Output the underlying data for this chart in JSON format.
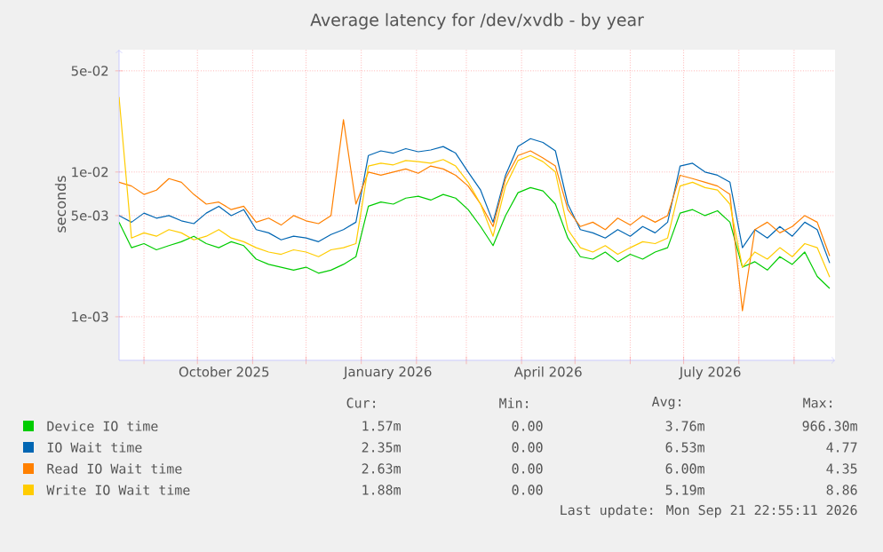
{
  "chart_data": {
    "type": "line",
    "title": "Average latency for /dev/xvdb - by year",
    "ylabel": "seconds",
    "x": [
      "2025-08-18",
      "2025-08-25",
      "2025-09-01",
      "2025-09-08",
      "2025-09-15",
      "2025-09-22",
      "2025-09-29",
      "2025-10-06",
      "2025-10-13",
      "2025-10-20",
      "2025-10-27",
      "2025-11-03",
      "2025-11-10",
      "2025-11-17",
      "2025-11-24",
      "2025-12-01",
      "2025-12-08",
      "2025-12-15",
      "2025-12-22",
      "2025-12-29",
      "2026-01-05",
      "2026-01-12",
      "2026-01-19",
      "2026-01-26",
      "2026-02-02",
      "2026-02-09",
      "2026-02-16",
      "2026-02-23",
      "2026-03-02",
      "2026-03-09",
      "2026-03-16",
      "2026-03-23",
      "2026-03-30",
      "2026-04-06",
      "2026-04-13",
      "2026-04-20",
      "2026-04-27",
      "2026-05-04",
      "2026-05-11",
      "2026-05-18",
      "2026-05-25",
      "2026-06-01",
      "2026-06-08",
      "2026-06-15",
      "2026-06-22",
      "2026-06-29",
      "2026-07-06",
      "2026-07-13",
      "2026-07-20",
      "2026-07-27",
      "2026-08-03",
      "2026-08-10",
      "2026-08-17",
      "2026-08-24",
      "2026-08-31",
      "2026-09-07",
      "2026-09-14",
      "2026-09-21"
    ],
    "series": [
      {
        "name": "Device IO time",
        "color": "#00cc00",
        "values": [
          0.0045,
          0.003,
          0.0032,
          0.0029,
          0.0031,
          0.0033,
          0.0036,
          0.0032,
          0.003,
          0.0033,
          0.0031,
          0.0025,
          0.0023,
          0.0022,
          0.0021,
          0.0022,
          0.002,
          0.0021,
          0.0023,
          0.0026,
          0.0058,
          0.0062,
          0.006,
          0.0066,
          0.0068,
          0.0064,
          0.007,
          0.0066,
          0.0055,
          0.0042,
          0.0031,
          0.005,
          0.0072,
          0.0078,
          0.0074,
          0.006,
          0.0035,
          0.0026,
          0.0025,
          0.0028,
          0.0024,
          0.0027,
          0.0025,
          0.0028,
          0.003,
          0.0052,
          0.0055,
          0.005,
          0.0054,
          0.0045,
          0.0022,
          0.0024,
          0.0021,
          0.0026,
          0.0023,
          0.0028,
          0.0019,
          0.00157
        ]
      },
      {
        "name": "IO Wait time",
        "color": "#0066b3",
        "values": [
          0.005,
          0.0045,
          0.0052,
          0.0048,
          0.005,
          0.0046,
          0.0044,
          0.0052,
          0.0058,
          0.005,
          0.0055,
          0.004,
          0.0038,
          0.0034,
          0.0036,
          0.0035,
          0.0033,
          0.0037,
          0.004,
          0.0045,
          0.013,
          0.014,
          0.0135,
          0.0145,
          0.0138,
          0.0142,
          0.015,
          0.0135,
          0.01,
          0.0075,
          0.0045,
          0.0095,
          0.015,
          0.017,
          0.016,
          0.014,
          0.006,
          0.004,
          0.0038,
          0.0035,
          0.004,
          0.0036,
          0.0042,
          0.0038,
          0.0045,
          0.011,
          0.0115,
          0.01,
          0.0095,
          0.0085,
          0.003,
          0.004,
          0.0035,
          0.0042,
          0.0036,
          0.0045,
          0.004,
          0.00235
        ]
      },
      {
        "name": "Read IO Wait time",
        "color": "#ff8000",
        "values": [
          0.0085,
          0.008,
          0.007,
          0.0075,
          0.009,
          0.0085,
          0.007,
          0.006,
          0.0062,
          0.0055,
          0.0058,
          0.0045,
          0.0048,
          0.0043,
          0.005,
          0.0046,
          0.0044,
          0.005,
          0.023,
          0.006,
          0.01,
          0.0095,
          0.01,
          0.0105,
          0.0098,
          0.011,
          0.0105,
          0.0095,
          0.008,
          0.006,
          0.0042,
          0.009,
          0.013,
          0.014,
          0.0125,
          0.011,
          0.0055,
          0.0042,
          0.0045,
          0.004,
          0.0048,
          0.0043,
          0.005,
          0.0045,
          0.005,
          0.0095,
          0.009,
          0.0085,
          0.008,
          0.007,
          0.0011,
          0.004,
          0.0045,
          0.0038,
          0.0042,
          0.005,
          0.0045,
          0.00263
        ]
      },
      {
        "name": "Write IO Wait time",
        "color": "#ffcc00",
        "values": [
          0.033,
          0.0035,
          0.0038,
          0.0036,
          0.004,
          0.0038,
          0.0034,
          0.0036,
          0.004,
          0.0035,
          0.0033,
          0.003,
          0.0028,
          0.0027,
          0.0029,
          0.0028,
          0.0026,
          0.0029,
          0.003,
          0.0032,
          0.011,
          0.0115,
          0.0112,
          0.012,
          0.0118,
          0.0115,
          0.0122,
          0.011,
          0.0085,
          0.006,
          0.0036,
          0.008,
          0.012,
          0.013,
          0.0118,
          0.01,
          0.004,
          0.003,
          0.0028,
          0.0031,
          0.0027,
          0.003,
          0.0033,
          0.0032,
          0.0035,
          0.008,
          0.0085,
          0.0078,
          0.0075,
          0.006,
          0.0022,
          0.0028,
          0.0025,
          0.003,
          0.0026,
          0.0032,
          0.003,
          0.00188
        ]
      }
    ],
    "xlim": [
      "2025-08-18",
      "2026-09-24"
    ],
    "xticks": [
      {
        "value": "2025-09-01",
        "label": null
      },
      {
        "value": "2025-10-01",
        "label": null
      },
      {
        "value": "2025-10-16",
        "label": "October 2025"
      },
      {
        "value": "2025-11-01",
        "label": null
      },
      {
        "value": "2025-12-01",
        "label": null
      },
      {
        "value": "2026-01-01",
        "label": null
      },
      {
        "value": "2026-01-16",
        "label": "January 2026"
      },
      {
        "value": "2026-02-01",
        "label": null
      },
      {
        "value": "2026-03-01",
        "label": null
      },
      {
        "value": "2026-04-01",
        "label": null
      },
      {
        "value": "2026-04-16",
        "label": "April 2026"
      },
      {
        "value": "2026-05-01",
        "label": null
      },
      {
        "value": "2026-06-01",
        "label": null
      },
      {
        "value": "2026-07-01",
        "label": null
      },
      {
        "value": "2026-07-16",
        "label": "July 2026"
      },
      {
        "value": "2026-08-01",
        "label": null
      },
      {
        "value": "2026-09-01",
        "label": null
      }
    ],
    "ylim": [
      0.0005,
      0.07
    ],
    "yticks": [
      {
        "value": 0.001,
        "label": "1e-03"
      },
      {
        "value": 0.005,
        "label": "5e-03"
      },
      {
        "value": 0.01,
        "label": "1e-02"
      },
      {
        "value": 0.05,
        "label": "5e-02"
      }
    ],
    "log": true,
    "grid": true,
    "legend": "bottom",
    "annotations": [
      "Cur:",
      "Min:",
      "Avg:",
      "Max:",
      "1.57m",
      "0.00",
      "3.76m",
      "966.30m",
      "2.35m",
      "0.00",
      "6.53m",
      "4.77",
      "2.63m",
      "0.00",
      "6.00m",
      "4.35",
      "1.88m",
      "0.00",
      "5.19m",
      "8.86",
      "Last update: Mon Sep 21 22:55:11 2026"
    ]
  }
}
